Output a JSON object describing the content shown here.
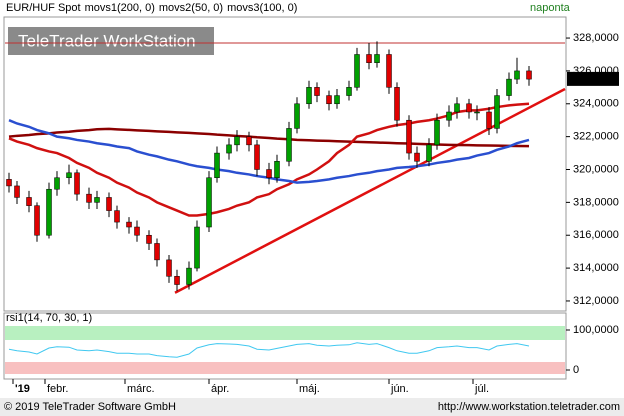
{
  "chart_data": [
    {
      "type": "candlestick",
      "frequency": "naponta",
      "x": [
        1,
        3,
        6,
        8,
        11,
        13,
        16,
        18,
        21,
        23,
        26,
        28,
        31,
        33,
        36,
        38,
        41,
        43,
        46,
        48,
        51,
        53,
        56,
        58,
        61,
        63,
        66,
        68,
        71,
        73,
        76,
        78,
        81,
        83,
        86,
        88,
        91,
        93,
        96,
        98,
        101,
        103,
        106,
        108,
        111,
        113,
        116,
        118,
        121,
        123,
        126,
        128,
        131
      ],
      "xlim": [
        0,
        140
      ],
      "xticks": [
        {
          "value": 2,
          "label": "'19"
        },
        {
          "value": 10,
          "label": "febr."
        },
        {
          "value": 30,
          "label": "márc."
        },
        {
          "value": 51,
          "label": "ápr."
        },
        {
          "value": 73,
          "label": "máj."
        },
        {
          "value": 96,
          "label": "jún."
        },
        {
          "value": 117,
          "label": "júl."
        }
      ],
      "ylim": [
        311.45,
        329.22
      ],
      "yticks": [
        {
          "value": 312,
          "label": "312,0000"
        },
        {
          "value": 314,
          "label": "314,0000"
        },
        {
          "value": 316,
          "label": "316,0000"
        },
        {
          "value": 318,
          "label": "318,0000"
        },
        {
          "value": 320,
          "label": "320,0000"
        },
        {
          "value": 322,
          "label": "322,0000"
        },
        {
          "value": 324,
          "label": "324,0000"
        },
        {
          "value": 326,
          "label": "326,0000"
        },
        {
          "value": 328,
          "label": "328,0000"
        }
      ],
      "last_price": {
        "value": 325.515,
        "label": "325,5150"
      },
      "resistance": 327.7,
      "trendline": {
        "x": [
          42.5,
          140
        ],
        "y": [
          312.5,
          324.9
        ]
      },
      "series": [
        {
          "name": "EUR/HUF Spot",
          "type": "candlestick",
          "up_color": "#00a000",
          "down_color": "#e00000",
          "values": [
            [
              319.4,
              319.8,
              318.6,
              319.0
            ],
            [
              319.0,
              319.3,
              317.9,
              318.3
            ],
            [
              318.3,
              318.7,
              317.4,
              317.8
            ],
            [
              317.8,
              318.0,
              315.6,
              316.0
            ],
            [
              316.0,
              319.2,
              315.8,
              318.8
            ],
            [
              318.8,
              319.9,
              318.4,
              319.5
            ],
            [
              319.5,
              320.3,
              319.1,
              319.8
            ],
            [
              319.8,
              320.0,
              318.1,
              318.5
            ],
            [
              318.5,
              318.9,
              317.6,
              318.0
            ],
            [
              318.0,
              318.7,
              317.6,
              318.3
            ],
            [
              318.3,
              318.6,
              317.1,
              317.5
            ],
            [
              317.5,
              317.8,
              316.4,
              316.8
            ],
            [
              316.8,
              317.1,
              316.1,
              316.5
            ],
            [
              316.5,
              316.9,
              315.6,
              316.0
            ],
            [
              316.0,
              316.3,
              315.1,
              315.5
            ],
            [
              315.5,
              315.8,
              314.1,
              314.5
            ],
            [
              314.5,
              314.8,
              313.1,
              313.5
            ],
            [
              313.5,
              313.9,
              312.6,
              313.0
            ],
            [
              313.0,
              314.4,
              312.7,
              314.0
            ],
            [
              314.0,
              316.9,
              313.8,
              316.5
            ],
            [
              316.5,
              319.9,
              316.2,
              319.5
            ],
            [
              319.5,
              321.4,
              319.2,
              321.0
            ],
            [
              321.0,
              321.9,
              320.6,
              321.5
            ],
            [
              321.5,
              322.4,
              321.1,
              322.0
            ],
            [
              322.0,
              322.3,
              321.1,
              321.5
            ],
            [
              321.5,
              321.8,
              319.6,
              320.0
            ],
            [
              320.0,
              320.4,
              319.1,
              319.5
            ],
            [
              319.5,
              320.9,
              319.2,
              320.5
            ],
            [
              320.5,
              322.9,
              320.2,
              322.5
            ],
            [
              322.5,
              324.4,
              322.2,
              324.0
            ],
            [
              324.0,
              325.4,
              323.7,
              325.0
            ],
            [
              325.0,
              325.3,
              324.1,
              324.5
            ],
            [
              324.5,
              324.8,
              323.6,
              324.0
            ],
            [
              324.0,
              324.9,
              323.7,
              324.5
            ],
            [
              324.5,
              325.4,
              324.2,
              325.0
            ],
            [
              325.0,
              327.4,
              324.8,
              327.0
            ],
            [
              327.0,
              327.7,
              326.1,
              326.5
            ],
            [
              326.5,
              327.8,
              326.2,
              327.0
            ],
            [
              327.0,
              327.3,
              324.6,
              325.0
            ],
            [
              325.0,
              325.3,
              322.6,
              323.0
            ],
            [
              323.0,
              323.3,
              320.6,
              321.0
            ],
            [
              321.0,
              321.4,
              320.1,
              320.5
            ],
            [
              320.5,
              321.9,
              320.2,
              321.5
            ],
            [
              321.5,
              323.4,
              321.2,
              323.0
            ],
            [
              323.0,
              323.9,
              322.6,
              323.5
            ],
            [
              323.5,
              324.4,
              323.1,
              324.0
            ],
            [
              324.0,
              324.3,
              323.1,
              323.5
            ],
            [
              323.5,
              323.9,
              323.0,
              323.5
            ],
            [
              323.5,
              323.8,
              322.1,
              322.5
            ],
            [
              322.5,
              324.9,
              322.2,
              324.5
            ],
            [
              324.5,
              325.9,
              324.2,
              325.5
            ],
            [
              325.5,
              326.8,
              325.2,
              326.0
            ],
            [
              326.0,
              326.3,
              325.1,
              325.5
            ]
          ]
        },
        {
          "name": "movs1(200, 0)",
          "type": "line",
          "color": "#8b0000",
          "values": [
            322.0,
            322.05,
            322.1,
            322.15,
            322.2,
            322.25,
            322.3,
            322.35,
            322.4,
            322.45,
            322.47,
            322.44,
            322.41,
            322.38,
            322.35,
            322.32,
            322.29,
            322.26,
            322.23,
            322.2,
            322.16,
            322.12,
            322.08,
            322.04,
            322.0,
            321.96,
            321.92,
            321.88,
            321.84,
            321.8,
            321.78,
            321.76,
            321.74,
            321.72,
            321.7,
            321.68,
            321.66,
            321.64,
            321.62,
            321.6,
            321.58,
            321.56,
            321.54,
            321.52,
            321.5,
            321.49,
            321.48,
            321.47,
            321.46,
            321.45,
            321.44,
            321.43,
            321.42
          ]
        },
        {
          "name": "movs2(50, 0)",
          "type": "line",
          "color": "#d01010",
          "values": [
            321.9,
            321.7,
            321.5,
            321.3,
            321.1,
            321.0,
            320.7,
            320.4,
            320.1,
            319.8,
            319.5,
            319.2,
            318.9,
            318.6,
            318.3,
            318.0,
            317.7,
            317.5,
            317.2,
            317.2,
            317.3,
            317.4,
            317.6,
            317.8,
            318.0,
            318.3,
            318.5,
            318.8,
            319.1,
            319.4,
            319.7,
            320.0,
            320.5,
            321.0,
            321.5,
            322.0,
            322.2,
            322.4,
            322.6,
            322.7,
            322.8,
            322.9,
            323.0,
            323.1,
            323.3,
            323.5,
            323.6,
            323.6,
            323.7,
            323.8,
            323.9,
            323.95,
            324.0
          ]
        },
        {
          "name": "movs3(100, 0)",
          "type": "line",
          "color": "#2a4fd0",
          "values": [
            323.0,
            322.8,
            322.6,
            322.4,
            322.2,
            322.0,
            321.9,
            321.8,
            321.7,
            321.6,
            321.5,
            321.4,
            321.3,
            321.1,
            320.9,
            320.8,
            320.6,
            320.5,
            320.3,
            320.2,
            320.1,
            320.0,
            319.9,
            319.8,
            319.7,
            319.6,
            319.5,
            319.4,
            319.3,
            319.2,
            319.25,
            319.3,
            319.4,
            319.5,
            319.6,
            319.7,
            319.8,
            319.9,
            320.0,
            320.1,
            320.15,
            320.2,
            320.3,
            320.4,
            320.5,
            320.6,
            320.7,
            320.85,
            321.0,
            321.2,
            321.4,
            321.6,
            321.8
          ]
        }
      ]
    },
    {
      "type": "line",
      "title": "rsi1(14, 70, 30, 1)",
      "color": "#40c8f0",
      "ylim": [
        -20,
        140
      ],
      "yticks": [
        {
          "value": 100,
          "label": "100,0000"
        },
        0
      ],
      "bands": [
        {
          "from": 75,
          "to": 110,
          "color": "#b8f0c0"
        },
        {
          "from": -10,
          "to": 20,
          "color": "#f8c0c0"
        }
      ],
      "values": [
        52,
        48,
        45,
        40,
        55,
        58,
        57,
        50,
        48,
        50,
        46,
        42,
        42,
        40,
        40,
        36,
        33,
        32,
        40,
        55,
        63,
        66,
        65,
        64,
        60,
        52,
        50,
        54,
        60,
        64,
        66,
        62,
        60,
        62,
        63,
        68,
        64,
        66,
        56,
        48,
        42,
        42,
        48,
        56,
        58,
        60,
        56,
        56,
        50,
        60,
        64,
        66,
        60
      ]
    }
  ],
  "watermark": "TeleTrader WorkStation",
  "footer": {
    "left": "© 2019 TeleTrader Software GmbH",
    "right": "http://www.workstation.teletrader.com"
  }
}
